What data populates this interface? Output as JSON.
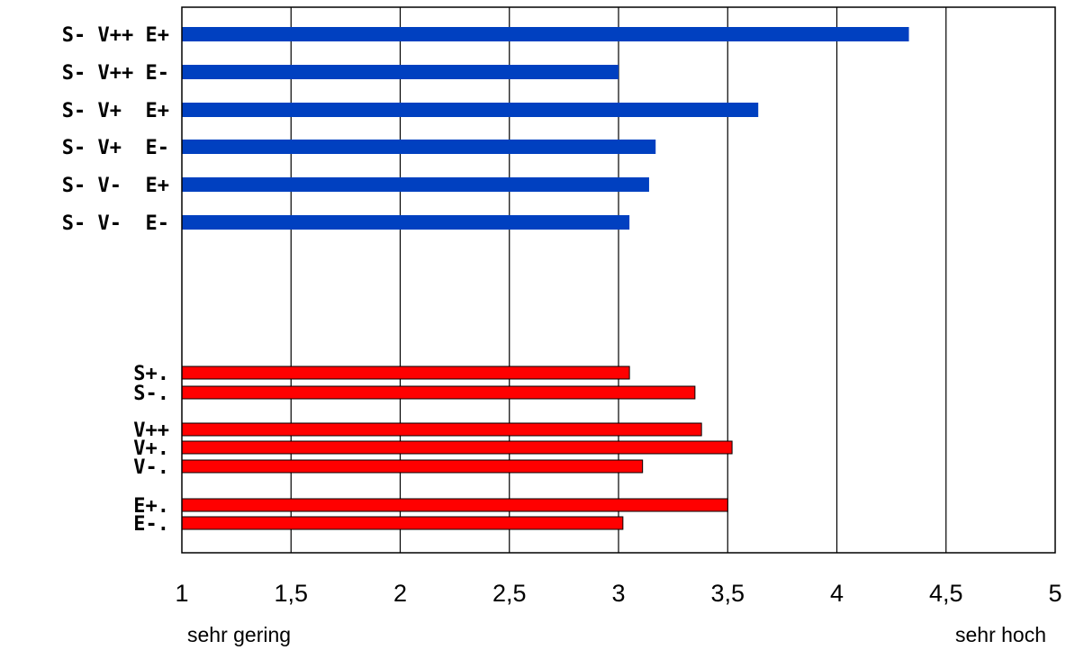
{
  "chart_data": {
    "type": "bar",
    "orientation": "horizontal",
    "xlim": [
      1,
      5
    ],
    "x_ticks": [
      {
        "value": 1,
        "label": "1"
      },
      {
        "value": 1.5,
        "label": "1,5"
      },
      {
        "value": 2,
        "label": "2"
      },
      {
        "value": 2.5,
        "label": "2,5"
      },
      {
        "value": 3,
        "label": "3"
      },
      {
        "value": 3.5,
        "label": "3,5"
      },
      {
        "value": 4,
        "label": "4"
      },
      {
        "value": 4.5,
        "label": "4,5"
      },
      {
        "value": 5,
        "label": "5"
      }
    ],
    "x_anchor_labels": {
      "low": "sehr gering",
      "high": "sehr hoch"
    },
    "grid": "vertical",
    "groups": [
      {
        "color": "#0040C0",
        "categories": [
          "S- V++ E+",
          "S- V++ E-",
          "S- V+  E+",
          "S- V+  E-",
          "S- V-  E+",
          "S- V-  E-"
        ],
        "values": [
          4.33,
          3.0,
          3.64,
          3.17,
          3.14,
          3.05
        ]
      },
      {
        "color": "#FF0000",
        "categories": [
          "S+.",
          "S-."
        ],
        "values": [
          3.05,
          3.35
        ]
      },
      {
        "color": "#FF0000",
        "categories": [
          "V++",
          "V+.",
          "V-."
        ],
        "values": [
          3.38,
          3.52,
          3.11
        ]
      },
      {
        "color": "#FF0000",
        "categories": [
          "E+.",
          "E-."
        ],
        "values": [
          3.5,
          3.02
        ]
      }
    ]
  }
}
